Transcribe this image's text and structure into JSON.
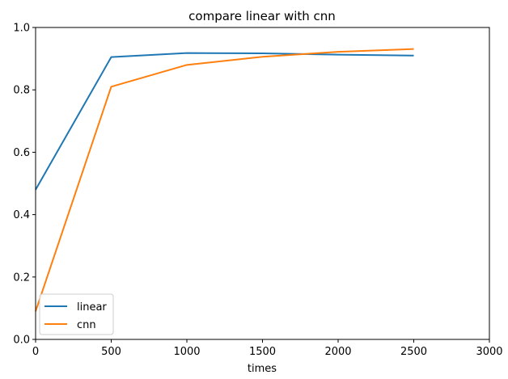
{
  "chart_data": {
    "type": "line",
    "title": "compare linear with cnn",
    "xlabel": "times",
    "ylabel": "",
    "xlim": [
      0,
      3000
    ],
    "ylim": [
      0,
      1.0
    ],
    "x": [
      0,
      500,
      1000,
      1500,
      2000,
      2500
    ],
    "xticks": [
      "0",
      "500",
      "1000",
      "1500",
      "2000",
      "2500",
      "3000"
    ],
    "yticks": [
      "0.0",
      "0.2",
      "0.4",
      "0.6",
      "0.8",
      "1.0"
    ],
    "grid": false,
    "legend_position": "lower-left",
    "series": [
      {
        "name": "linear",
        "color": "#1f77b4",
        "values": [
          0.48,
          0.905,
          0.918,
          0.917,
          0.913,
          0.91
        ]
      },
      {
        "name": "cnn",
        "color": "#ff7f0e",
        "values": [
          0.09,
          0.81,
          0.88,
          0.906,
          0.922,
          0.931
        ]
      }
    ]
  }
}
